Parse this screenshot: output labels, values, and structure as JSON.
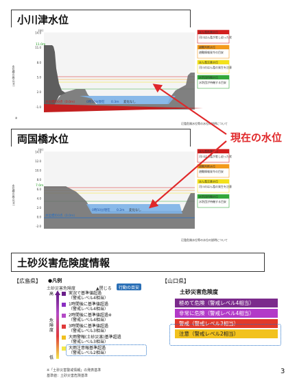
{
  "section1": {
    "title": "小川津水位",
    "chart_data": {
      "type": "area",
      "y_unit": "(m)",
      "ylabel": "水位標の高さ(m)",
      "ylim": [
        -1.5,
        14.0
      ],
      "yticks": [
        14.0,
        11.0,
        8.0,
        5.0,
        2.0,
        -1.0
      ],
      "current_level": 0.3,
      "current_label": "0時50分現在",
      "current_value": "0.3m",
      "trend": "変化なし",
      "levels": [
        {
          "name": "はん濫危険水位",
          "color": "#d21f1f"
        },
        {
          "name": "避難判断水位",
          "color": "#f39a1b"
        },
        {
          "name": "はん濫注意水位",
          "color": "#f3e11b"
        },
        {
          "name": "水防団待機水位",
          "color": "#32a83a"
        }
      ],
      "level_notes": [
        "河川はん濫が差し迫った状況",
        "避難情報発令の目安",
        "河川のはん濫の発生を注意",
        "水防団が待機する目安"
      ],
      "bank_label": "11.0m",
      "datum_label": "水位標の0点（0.0ｍ）"
    },
    "link": "氾濫危険水位等の水位の説明について"
  },
  "section2": {
    "title": "両国橋水位",
    "chart_data": {
      "type": "area",
      "y_unit": "(m)",
      "ylabel": "水位標の高さ(m)",
      "ylim": [
        -2.5,
        14.0
      ],
      "yticks": [
        14.0,
        12.0,
        10.0,
        8.0,
        6.0,
        4.0,
        2.0,
        0.0,
        -2.0
      ],
      "current_level": 0.2,
      "current_label": "0時50分現在",
      "current_value": "0.2m",
      "trend": "変化なし",
      "levels": [
        {
          "name": "はん濫危険水位",
          "color": "#d21f1f"
        },
        {
          "name": "避難判断水位",
          "color": "#f39a1b"
        },
        {
          "name": "はん濫注意水位",
          "color": "#f3e11b"
        },
        {
          "name": "水防団待機水位",
          "color": "#32a83a"
        }
      ],
      "level_notes": [
        "河川はん濫が差し迫った状況",
        "避難情報発令の目安",
        "河川のはん濫の発生を注意",
        "水防団が待機する目安"
      ],
      "bank_label": "7.0m",
      "datum_label": "水位標の0点（0.0ｍ）"
    },
    "link": "氾濫危険水位等の水位の説明について"
  },
  "callout": "現在の水位",
  "section3": {
    "title": "土砂災害危険度情報",
    "hiroshima": {
      "label": "【広島県】",
      "legend_title": "●凡例",
      "subtitle": "土砂災害危険度",
      "close": "▲閉じる",
      "button": "行動の目安",
      "axis_high": "高",
      "axis_mid": "危険度",
      "axis_low": "低",
      "items": [
        {
          "text": "実況で基準値超過",
          "sub": "（警戒レベル4相当）",
          "color": "#6a1f8a"
        },
        {
          "text": "1時間後に基準値超過",
          "sub": "（警戒レベル4相当）",
          "color": "#8a2ec2"
        },
        {
          "text": "2時間後に基準値超過※",
          "sub": "（警戒レベル4相当）",
          "color": "#b44ac6"
        },
        {
          "text": "3時間後に基準値超過",
          "sub": "（警戒レベル3相当）",
          "color": "#e03a3a"
        },
        {
          "text": "大雨警報(土砂災害)基準超過",
          "sub": "（警戒レベル3相当）",
          "color": "#f0c020"
        },
        {
          "text": "大雨注意報基準超過",
          "sub": "（警戒レベル2相当）",
          "color": "#f4e84a"
        }
      ],
      "note1": "※「土砂災害警戒情報」の発表基準",
      "note2": "基準値：土砂災害危険基準"
    },
    "yamaguchi": {
      "label": "【山口県】",
      "heading": "土砂災害危険度",
      "rows": [
        {
          "text": "極めて危険（警戒レベル4相当）",
          "color": "#7b2a8c"
        },
        {
          "text": "非常に危険（警戒レベル4相当）",
          "color": "#b23ac8"
        },
        {
          "text": "警戒（警戒レベル3相当）",
          "color": "#e23a2a"
        },
        {
          "text": "注意（警戒レベル2相当）",
          "color": "#f2c21e"
        }
      ]
    }
  },
  "page_number": "3"
}
